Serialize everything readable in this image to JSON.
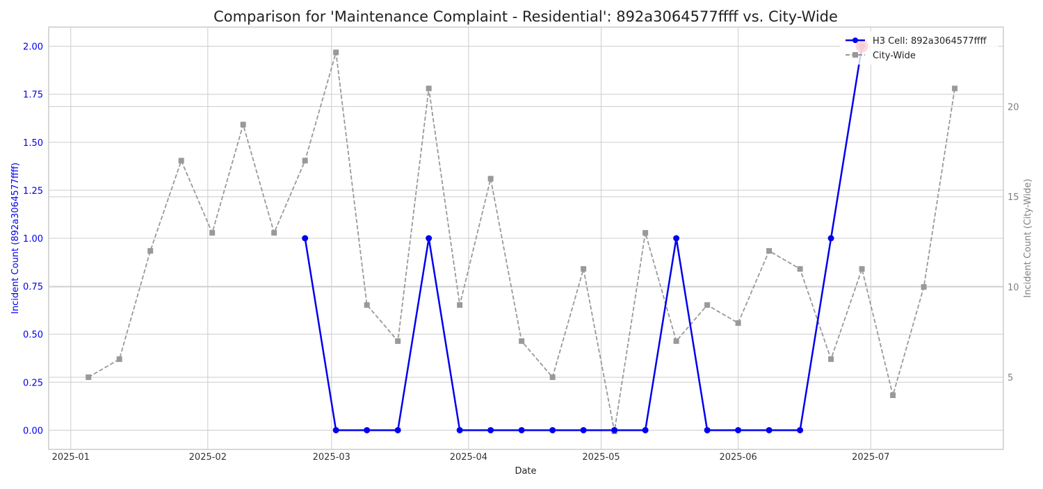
{
  "chart_data": {
    "type": "line",
    "title": "Comparison for 'Maintenance Complaint - Residential': 892a3064577ffff vs. City-Wide",
    "xlabel": "Date",
    "ylabel_left": "Incident Count (892a3064577ffff)",
    "ylabel_right": "Incident Count (City-Wide)",
    "x_ticks": [
      "2025-01",
      "2025-02",
      "2025-03",
      "2025-04",
      "2025-05",
      "2025-06",
      "2025-07"
    ],
    "x_tick_dates": [
      "2025-01-01",
      "2025-02-01",
      "2025-03-01",
      "2025-04-01",
      "2025-05-01",
      "2025-06-01",
      "2025-07-01"
    ],
    "xlim": [
      "2024-12-27",
      "2025-07-31"
    ],
    "y_left_ticks": [
      "0.00",
      "0.25",
      "0.50",
      "0.75",
      "1.00",
      "1.25",
      "1.50",
      "1.75",
      "2.00"
    ],
    "y_left_lim": [
      -0.1,
      2.1
    ],
    "y_right_ticks": [
      "5",
      "10",
      "15",
      "20"
    ],
    "y_right_lim": [
      1.0,
      24.4
    ],
    "grid": true,
    "legend_position": "top-right",
    "series": [
      {
        "name": "H3 Cell: 892a3064577ffff",
        "axis": "left",
        "color": "#0000ee",
        "style": "solid",
        "marker": "circle",
        "x": [
          "2025-02-23",
          "2025-03-02",
          "2025-03-09",
          "2025-03-16",
          "2025-03-23",
          "2025-03-30",
          "2025-04-06",
          "2025-04-13",
          "2025-04-20",
          "2025-04-27",
          "2025-05-04",
          "2025-05-11",
          "2025-05-18",
          "2025-05-25",
          "2025-06-01",
          "2025-06-08",
          "2025-06-15",
          "2025-06-22",
          "2025-06-29"
        ],
        "values": [
          1,
          0,
          0,
          0,
          1,
          0,
          0,
          0,
          0,
          0,
          0,
          0,
          1,
          0,
          0,
          0,
          0,
          1,
          2
        ]
      },
      {
        "name": "City-Wide",
        "axis": "right",
        "color": "#999999",
        "style": "dashed",
        "marker": "square",
        "x": [
          "2025-01-05",
          "2025-01-12",
          "2025-01-19",
          "2025-01-26",
          "2025-02-02",
          "2025-02-09",
          "2025-02-16",
          "2025-02-23",
          "2025-03-02",
          "2025-03-09",
          "2025-03-16",
          "2025-03-23",
          "2025-03-30",
          "2025-04-06",
          "2025-04-13",
          "2025-04-20",
          "2025-04-27",
          "2025-05-04",
          "2025-05-11",
          "2025-05-18",
          "2025-05-25",
          "2025-06-01",
          "2025-06-08",
          "2025-06-15",
          "2025-06-22",
          "2025-06-29",
          "2025-07-06",
          "2025-07-13",
          "2025-07-20"
        ],
        "values": [
          5,
          6,
          12,
          17,
          13,
          19,
          13,
          17,
          23,
          9,
          7,
          21,
          9,
          16,
          7,
          5,
          11,
          2,
          13,
          7,
          9,
          8,
          12,
          11,
          6,
          11,
          4,
          10,
          21
        ]
      }
    ],
    "highlight": {
      "series": 0,
      "x": "2025-06-29",
      "value": 2,
      "color": "#ff0000"
    }
  }
}
